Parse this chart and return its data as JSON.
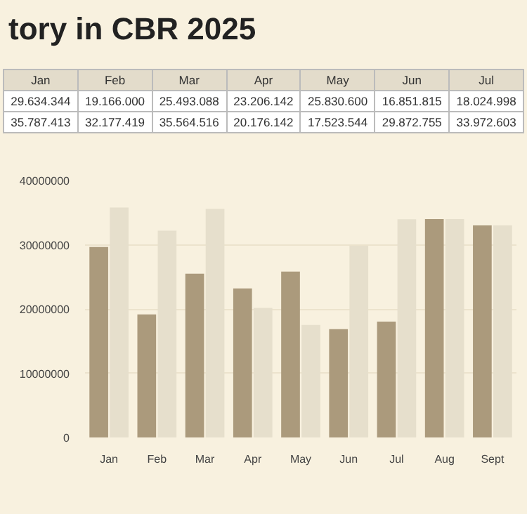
{
  "chart_data": {
    "type": "bar",
    "title": "tory in CBR 2025",
    "categories": [
      "Jan",
      "Feb",
      "Mar",
      "Apr",
      "May",
      "Jun",
      "Jul",
      "Aug",
      "Sept"
    ],
    "series": [
      {
        "color": "#ab9a7c",
        "values": [
          29634344,
          19166000,
          25493088,
          23206142,
          25830600,
          16851815,
          18024998,
          34000000,
          33000000
        ]
      },
      {
        "color": "#e6dfcc",
        "values": [
          35787413,
          32177419,
          35564516,
          20176142,
          17523544,
          29872755,
          33972603,
          34000000,
          33000000
        ]
      }
    ],
    "annotations": [
      "29.634.344",
      "19.166.000",
      "25.493.088",
      "23.206.142",
      "25.830.600",
      "16.851.815",
      "18.024.998",
      "35.787.413",
      "32.177.419",
      "35.564.516",
      "20.176.142",
      "17.523.544",
      "29.872.755",
      "33.972.603"
    ],
    "ylim": [
      0,
      40000000
    ],
    "yticks": [
      0,
      10000000,
      20000000,
      30000000,
      40000000
    ],
    "grid": "y"
  }
}
